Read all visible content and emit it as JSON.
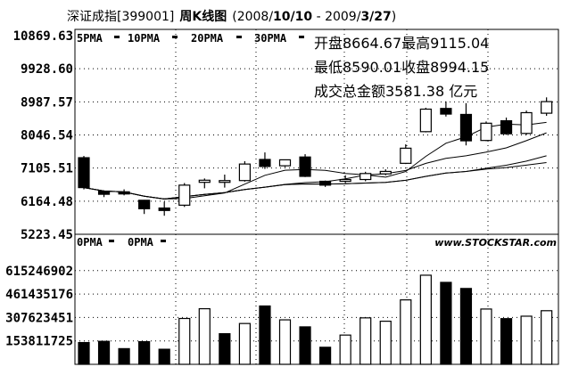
{
  "header": {
    "name": "深证成指",
    "code": "[399001]",
    "period": "周K线图",
    "date_open": "(2008/",
    "date_start_bold": "10/10",
    "date_mid": " - 2009/",
    "date_end_bold": "3/27",
    "date_close": ")"
  },
  "price_panel": {
    "ma_legend": [
      "5PMA",
      "10PMA",
      "20PMA",
      "30PMA"
    ],
    "info_lines": [
      "开盘8664.67最高9115.04",
      "最低8590.01收盘8994.15",
      "成交总金额3581.38 亿元"
    ],
    "y_labels": [
      "10869.63",
      "9928.60",
      "8987.57",
      "8046.54",
      "7105.51",
      "6164.48",
      "5223.45"
    ]
  },
  "volume_panel": {
    "ma_legend": [
      "0PMA",
      "0PMA"
    ],
    "watermark": "www.STOCKSTAR.com",
    "y_labels": [
      "615246902",
      "461435176",
      "307623451",
      "153811725"
    ]
  },
  "colors": {
    "up": "#ffffff",
    "down": "#000000",
    "line": "#000000",
    "grid": "#000000"
  },
  "chart_data": [
    {
      "type": "candlestick",
      "title": "深证成指[399001] 周K线图 (2008/10/10 - 2009/3/27)",
      "ylim": [
        5223.45,
        10869.63
      ],
      "grid": true,
      "candles": [
        {
          "open": 7400,
          "high": 7450,
          "low": 6500,
          "close": 6550
        },
        {
          "open": 6450,
          "high": 6470,
          "low": 6280,
          "close": 6360
        },
        {
          "open": 6430,
          "high": 6500,
          "low": 6330,
          "close": 6370
        },
        {
          "open": 6190,
          "high": 6200,
          "low": 5800,
          "close": 5950
        },
        {
          "open": 5970,
          "high": 6150,
          "low": 5750,
          "close": 5900
        },
        {
          "open": 6050,
          "high": 6680,
          "low": 6000,
          "close": 6620
        },
        {
          "open": 6700,
          "high": 6810,
          "low": 6530,
          "close": 6760
        },
        {
          "open": 6730,
          "high": 6920,
          "low": 6550,
          "close": 6750
        },
        {
          "open": 6750,
          "high": 7300,
          "low": 6720,
          "close": 7220
        },
        {
          "open": 7350,
          "high": 7550,
          "low": 7080,
          "close": 7150
        },
        {
          "open": 7170,
          "high": 7350,
          "low": 7130,
          "close": 7340
        },
        {
          "open": 7420,
          "high": 7500,
          "low": 6850,
          "close": 6870
        },
        {
          "open": 6730,
          "high": 6750,
          "low": 6570,
          "close": 6620
        },
        {
          "open": 6750,
          "high": 6900,
          "low": 6680,
          "close": 6780
        },
        {
          "open": 6780,
          "high": 7000,
          "low": 6730,
          "close": 6950
        },
        {
          "open": 6940,
          "high": 7070,
          "low": 6900,
          "close": 7010
        },
        {
          "open": 7240,
          "high": 7780,
          "low": 7220,
          "close": 7670
        },
        {
          "open": 8140,
          "high": 8820,
          "low": 8120,
          "close": 8780
        },
        {
          "open": 8800,
          "high": 9000,
          "low": 8570,
          "close": 8640
        },
        {
          "open": 8630,
          "high": 8950,
          "low": 7750,
          "close": 7880
        },
        {
          "open": 7890,
          "high": 8430,
          "low": 7870,
          "close": 8380
        },
        {
          "open": 8450,
          "high": 8540,
          "low": 8050,
          "close": 8080
        },
        {
          "open": 8090,
          "high": 8740,
          "low": 8050,
          "close": 8680
        },
        {
          "open": 8664.67,
          "high": 9115.04,
          "low": 8590.01,
          "close": 8994.15
        }
      ]
    },
    {
      "type": "bar",
      "ylim": [
        0,
        690000000
      ],
      "grid": true,
      "values": [
        143000000,
        151000000,
        103000000,
        149000000,
        99000000,
        301000000,
        365000000,
        201000000,
        268000000,
        383000000,
        292000000,
        246000000,
        112000000,
        192000000,
        305000000,
        283000000,
        423000000,
        585000000,
        538000000,
        498000000,
        363000000,
        300000000,
        316000000,
        352000000
      ],
      "bar_up": [
        false,
        false,
        false,
        false,
        false,
        true,
        true,
        false,
        true,
        false,
        true,
        false,
        false,
        true,
        true,
        true,
        true,
        true,
        false,
        false,
        true,
        false,
        true,
        true
      ]
    }
  ]
}
